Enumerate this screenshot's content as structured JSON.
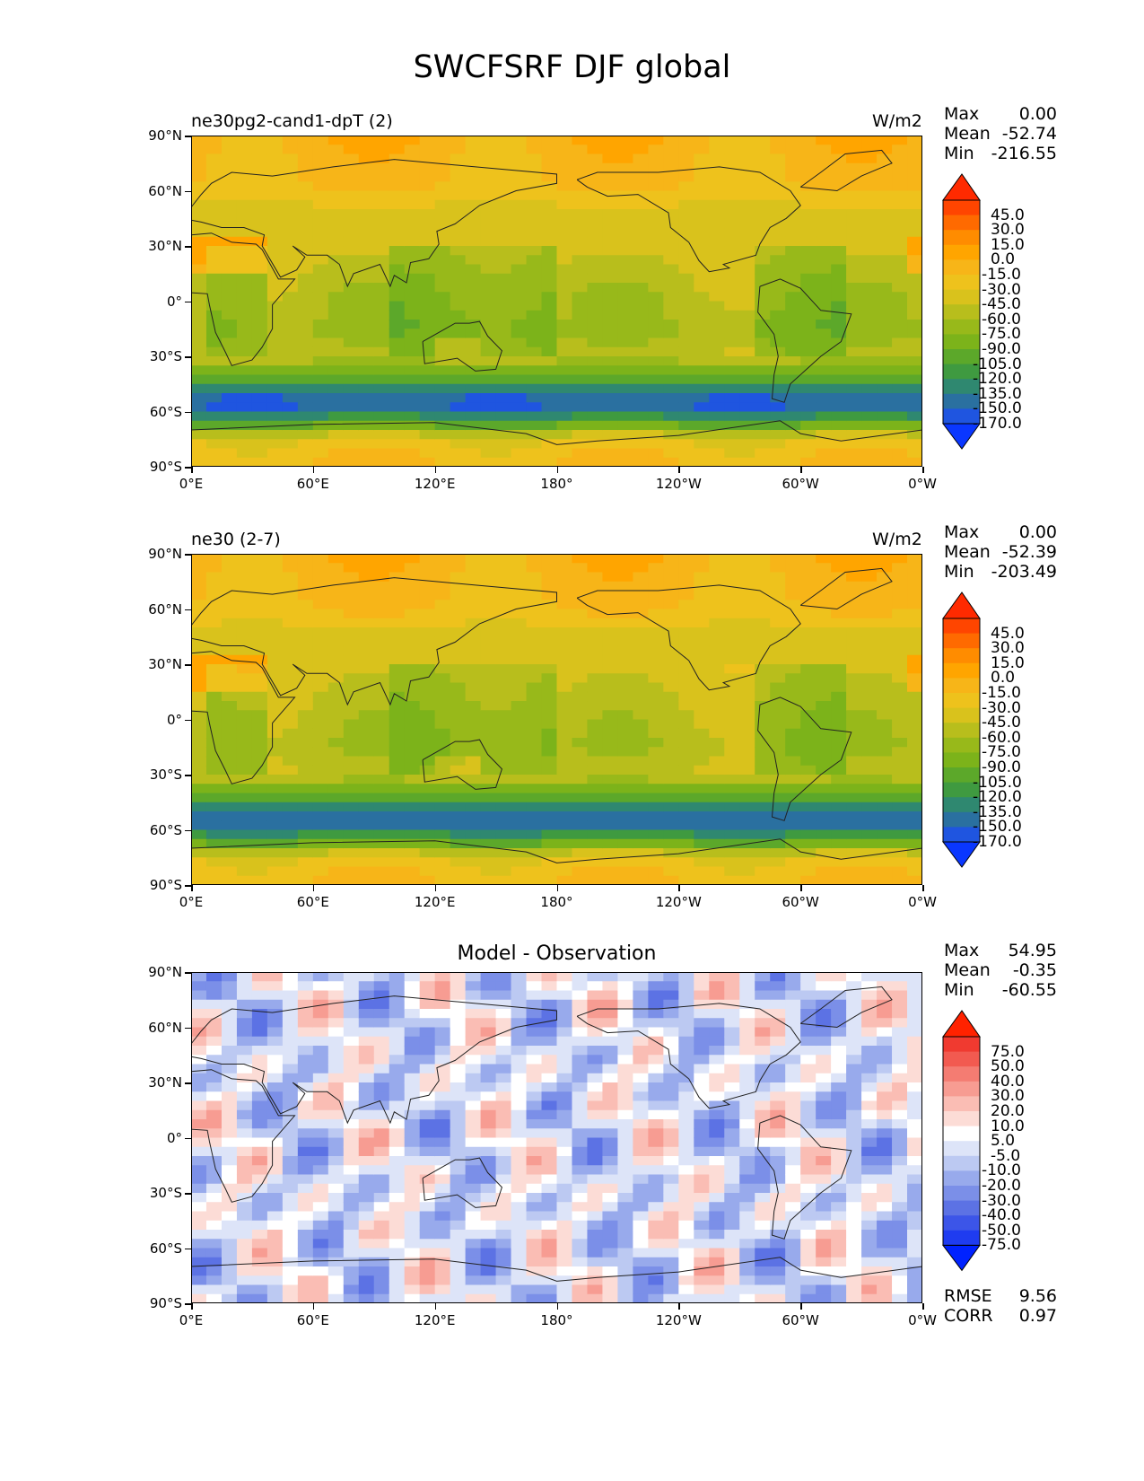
{
  "title": "SWCFSRF DJF global",
  "xticks": [
    "0°E",
    "60°E",
    "120°E",
    "180°",
    "120°W",
    "60°W",
    "0°W"
  ],
  "yticks": [
    "90°N",
    "60°N",
    "30°N",
    "0°",
    "30°S",
    "60°S",
    "90°S"
  ],
  "panels": [
    {
      "label": "ne30pg2-cand1-dpT (2)",
      "units": "W/m2",
      "stats": [
        {
          "name": "Max",
          "value": "0.00"
        },
        {
          "name": "Mean",
          "value": "-52.74"
        },
        {
          "name": "Min",
          "value": "-216.55"
        }
      ],
      "colorbar_labels": [
        "45.0",
        "30.0",
        "15.0",
        "0.0",
        "-15.0",
        "-30.0",
        "-45.0",
        "-60.0",
        "-75.0",
        "-90.0",
        "-105.0",
        "-120.0",
        "-135.0",
        "-150.0",
        "-170.0"
      ],
      "colors": {
        "top": "#ff2a00",
        "bands": [
          "#ff4500",
          "#ff6a00",
          "#ff8c00",
          "#ffa500",
          "#f7b518",
          "#eec21c",
          "#d9c21c",
          "#b8be1c",
          "#98b91a",
          "#7cb31a",
          "#5ca82a",
          "#3f9a40",
          "#2f8870",
          "#2a70a0",
          "#1f55e0"
        ],
        "bottom": "#0a37ff"
      }
    },
    {
      "label": "ne30 (2-7)",
      "units": "W/m2",
      "stats": [
        {
          "name": "Max",
          "value": "0.00"
        },
        {
          "name": "Mean",
          "value": "-52.39"
        },
        {
          "name": "Min",
          "value": "-203.49"
        }
      ],
      "colorbar_labels": [
        "45.0",
        "30.0",
        "15.0",
        "0.0",
        "-15.0",
        "-30.0",
        "-45.0",
        "-60.0",
        "-75.0",
        "-90.0",
        "-105.0",
        "-120.0",
        "-135.0",
        "-150.0",
        "-170.0"
      ],
      "colors": {
        "top": "#ff2a00",
        "bands": [
          "#ff4500",
          "#ff6a00",
          "#ff8c00",
          "#ffa500",
          "#f7b518",
          "#eec21c",
          "#d9c21c",
          "#b8be1c",
          "#98b91a",
          "#7cb31a",
          "#5ca82a",
          "#3f9a40",
          "#2f8870",
          "#2a70a0",
          "#1f55e0"
        ],
        "bottom": "#0a37ff"
      }
    },
    {
      "label": "Model - Observation",
      "units": "",
      "stats": [
        {
          "name": "Max",
          "value": "54.95"
        },
        {
          "name": "Mean",
          "value": "-0.35"
        },
        {
          "name": "Min",
          "value": "-60.55"
        }
      ],
      "colorbar_labels": [
        "75.0",
        "50.0",
        "40.0",
        "30.0",
        "20.0",
        "10.0",
        "5.0",
        "-5.0",
        "-10.0",
        "-20.0",
        "-30.0",
        "-40.0",
        "-50.0",
        "-75.0"
      ],
      "colors": {
        "top": "#ff2200",
        "bands": [
          "#f03a30",
          "#f25a50",
          "#f47c72",
          "#f79c92",
          "#fabdb4",
          "#fcdcd6",
          "#ffffff",
          "#dde4f8",
          "#bcc9f2",
          "#98aaec",
          "#7b8fe8",
          "#5c72e4",
          "#3c55e8",
          "#1f3cf0"
        ],
        "bottom": "#0022ff"
      },
      "bottom_stats": [
        {
          "name": "RMSE",
          "value": "9.56"
        },
        {
          "name": "CORR",
          "value": "0.97"
        }
      ]
    }
  ],
  "chart_data": [
    {
      "type": "heatmap",
      "title": "ne30pg2-cand1-dpT (2)",
      "units": "W/m2",
      "x_range": [
        0,
        360
      ],
      "y_range": [
        -90,
        90
      ],
      "levels": [
        -170,
        -150,
        -135,
        -120,
        -105,
        -90,
        -75,
        -60,
        -45,
        -30,
        -15,
        0,
        15,
        30,
        45
      ],
      "zonal_profile": [
        {
          "lat": 90,
          "value": -5
        },
        {
          "lat": 60,
          "value": -15
        },
        {
          "lat": 45,
          "value": -45
        },
        {
          "lat": 30,
          "value": -35
        },
        {
          "lat": 10,
          "value": -50
        },
        {
          "lat": 0,
          "value": -55
        },
        {
          "lat": -15,
          "value": -60
        },
        {
          "lat": -30,
          "value": -50
        },
        {
          "lat": -45,
          "value": -110
        },
        {
          "lat": -55,
          "value": -160
        },
        {
          "lat": -65,
          "value": -110
        },
        {
          "lat": -75,
          "value": -30
        },
        {
          "lat": -90,
          "value": -10
        }
      ],
      "max": 0.0,
      "mean": -52.74,
      "min": -216.55
    },
    {
      "type": "heatmap",
      "title": "ne30 (2-7)",
      "units": "W/m2",
      "x_range": [
        0,
        360
      ],
      "y_range": [
        -90,
        90
      ],
      "levels": [
        -170,
        -150,
        -135,
        -120,
        -105,
        -90,
        -75,
        -60,
        -45,
        -30,
        -15,
        0,
        15,
        30,
        45
      ],
      "zonal_profile": [
        {
          "lat": 90,
          "value": -5
        },
        {
          "lat": 60,
          "value": -15
        },
        {
          "lat": 45,
          "value": -40
        },
        {
          "lat": 30,
          "value": -35
        },
        {
          "lat": 10,
          "value": -45
        },
        {
          "lat": 0,
          "value": -50
        },
        {
          "lat": -15,
          "value": -55
        },
        {
          "lat": -30,
          "value": -45
        },
        {
          "lat": -45,
          "value": -115
        },
        {
          "lat": -55,
          "value": -155
        },
        {
          "lat": -65,
          "value": -105
        },
        {
          "lat": -75,
          "value": -30
        },
        {
          "lat": -90,
          "value": -10
        }
      ],
      "max": 0.0,
      "mean": -52.39,
      "min": -203.49
    },
    {
      "type": "heatmap",
      "title": "Model - Observation",
      "units": "W/m2",
      "x_range": [
        0,
        360
      ],
      "y_range": [
        -90,
        90
      ],
      "levels": [
        -75,
        -50,
        -40,
        -30,
        -20,
        -10,
        -5,
        5,
        10,
        20,
        30,
        40,
        50,
        75
      ],
      "max": 54.95,
      "mean": -0.35,
      "min": -60.55,
      "rmse": 9.56,
      "corr": 0.97
    }
  ]
}
